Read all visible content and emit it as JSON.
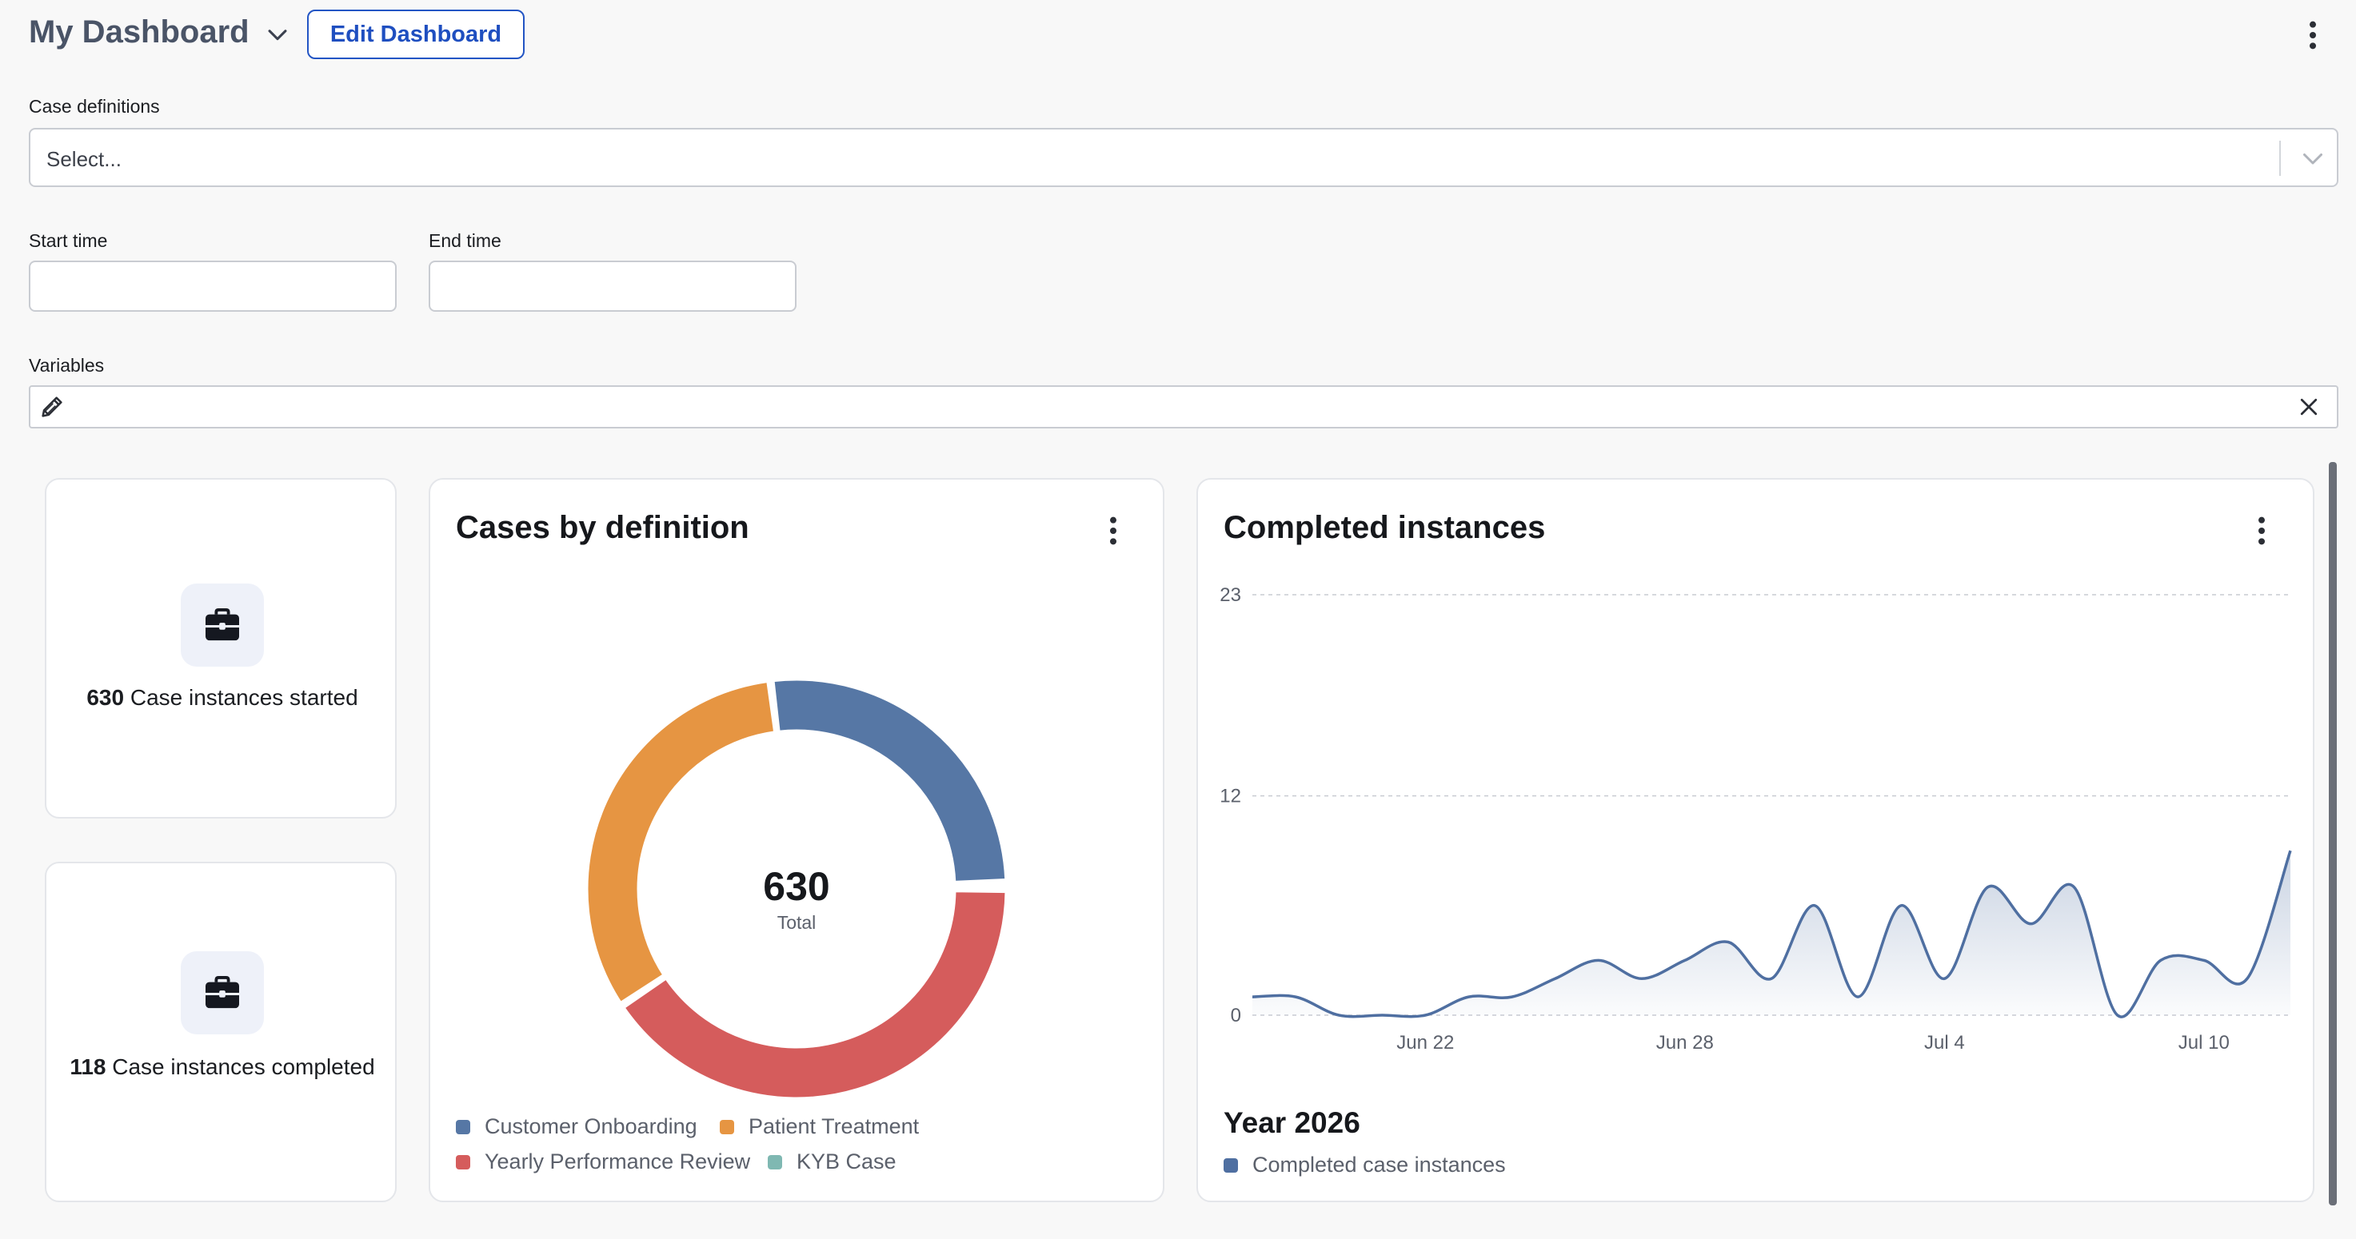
{
  "header": {
    "title": "My Dashboard",
    "edit_button": "Edit Dashboard"
  },
  "filters": {
    "case_definitions": {
      "label": "Case definitions",
      "placeholder": "Select..."
    },
    "start_time": {
      "label": "Start time",
      "value": ""
    },
    "end_time": {
      "label": "End time",
      "value": ""
    },
    "variables": {
      "label": "Variables"
    }
  },
  "kpis": [
    {
      "value": "630",
      "text": "Case instances started"
    },
    {
      "value": "118",
      "text": "Case instances completed"
    }
  ],
  "donut": {
    "title": "Cases by definition",
    "total": "630",
    "total_label": "Total"
  },
  "line": {
    "title": "Completed instances",
    "year": "Year 2026",
    "legend": "Completed case instances"
  },
  "colors": {
    "customer_onboarding": "#5677a5",
    "patient_treatment": "#e69542",
    "yearly_review": "#d55c5c",
    "kyb_case": "#7fb8b2",
    "line_series": "#4f6fa1",
    "accent": "#2355c4"
  },
  "icons": {
    "title_chevron": "chevron-down-icon",
    "page_menu": "kebab-icon",
    "select_chevron": "chevron-down-icon",
    "variables_edit": "pencil-icon",
    "variables_clear": "close-icon",
    "kpi": "briefcase-icon",
    "card_menu": "kebab-icon"
  },
  "chart_data": [
    {
      "type": "pie",
      "title": "Cases by definition",
      "center_label": "630 Total",
      "series": [
        {
          "name": "Customer Onboarding",
          "value": 167,
          "color": "#5677a5"
        },
        {
          "name": "Patient Treatment",
          "value": 204,
          "color": "#e69542"
        },
        {
          "name": "Yearly Performance Review",
          "value": 256,
          "color": "#d55c5c"
        },
        {
          "name": "KYB Case",
          "value": 3,
          "color": "#7fb8b2"
        }
      ],
      "legend_position": "bottom"
    },
    {
      "type": "area",
      "title": "Completed instances",
      "x_ticks": [
        "Jun 22",
        "Jun 28",
        "Jul 4",
        "Jul 10"
      ],
      "y_ticks": [
        0,
        12,
        23
      ],
      "ylim": [
        0,
        23
      ],
      "grid": true,
      "legend_position": "bottom-left",
      "series": [
        {
          "name": "Completed case instances",
          "color": "#4f6fa1",
          "x": [
            "Jun 18",
            "Jun 19",
            "Jun 20",
            "Jun 21",
            "Jun 22",
            "Jun 23",
            "Jun 24",
            "Jun 25",
            "Jun 26",
            "Jun 27",
            "Jun 28",
            "Jun 29",
            "Jun 30",
            "Jul 1",
            "Jul 2",
            "Jul 3",
            "Jul 4",
            "Jul 5",
            "Jul 6",
            "Jul 7",
            "Jul 8",
            "Jul 9",
            "Jul 10",
            "Jul 11",
            "Jul 12"
          ],
          "values": [
            1,
            1,
            0,
            0,
            0,
            1,
            1,
            2,
            3,
            2,
            3,
            4,
            2,
            6,
            1,
            6,
            2,
            7,
            5,
            7,
            0,
            3,
            3,
            2,
            9
          ]
        }
      ]
    }
  ]
}
